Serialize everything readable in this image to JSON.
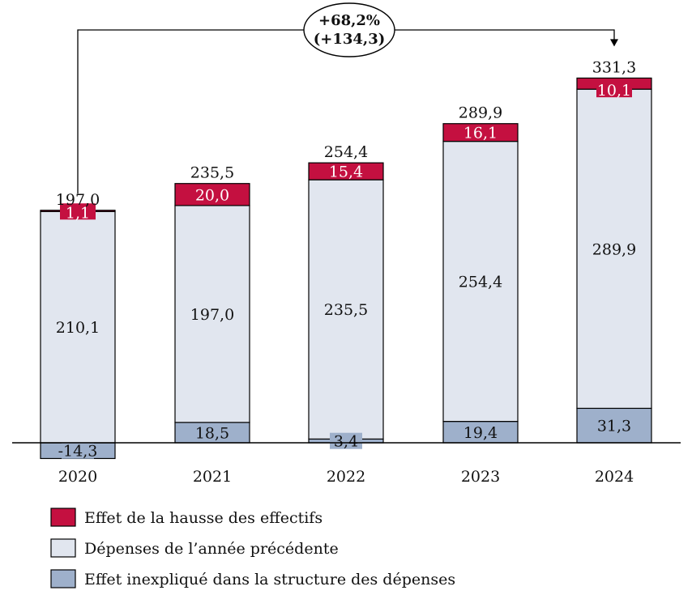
{
  "chart_data": {
    "type": "bar",
    "stacked": true,
    "categories": [
      "2020",
      "2021",
      "2022",
      "2023",
      "2024"
    ],
    "series": [
      {
        "name": "Effet inexpliqué dans la structure des dépenses",
        "key": "unexplained",
        "values": [
          -14.3,
          18.5,
          3.4,
          19.4,
          31.3
        ],
        "labels": [
          "-14,3",
          "18,5",
          "3,4",
          "19,4",
          "31,3"
        ],
        "color": "#9eb0cb"
      },
      {
        "name": "Dépenses de l’année précédente",
        "key": "previous",
        "values": [
          210.1,
          197.0,
          235.5,
          254.4,
          289.9
        ],
        "labels": [
          "210,1",
          "197,0",
          "235,5",
          "254,4",
          "289,9"
        ],
        "color": "#e1e6ef"
      },
      {
        "name": "Effet de la hausse des effectifs",
        "key": "headcount",
        "values": [
          1.1,
          20.0,
          15.4,
          16.1,
          10.1
        ],
        "labels": [
          "1,1",
          "20,0",
          "15,4",
          "16,1",
          "10,1"
        ],
        "color": "#c41040"
      }
    ],
    "totals": [
      197.0,
      235.5,
      254.4,
      289.9,
      331.3
    ],
    "total_labels": [
      "197,0",
      "235,5",
      "254,4",
      "289,9",
      "331,3"
    ],
    "annotation": {
      "from": "2020",
      "to": "2024",
      "line1": "+68,2%",
      "line2": "(+134,3)"
    },
    "legend": {
      "position": "bottom-left",
      "order": [
        "headcount",
        "previous",
        "unexplained"
      ]
    },
    "ylim": [
      -14.3,
      331.3
    ],
    "grid": false
  }
}
